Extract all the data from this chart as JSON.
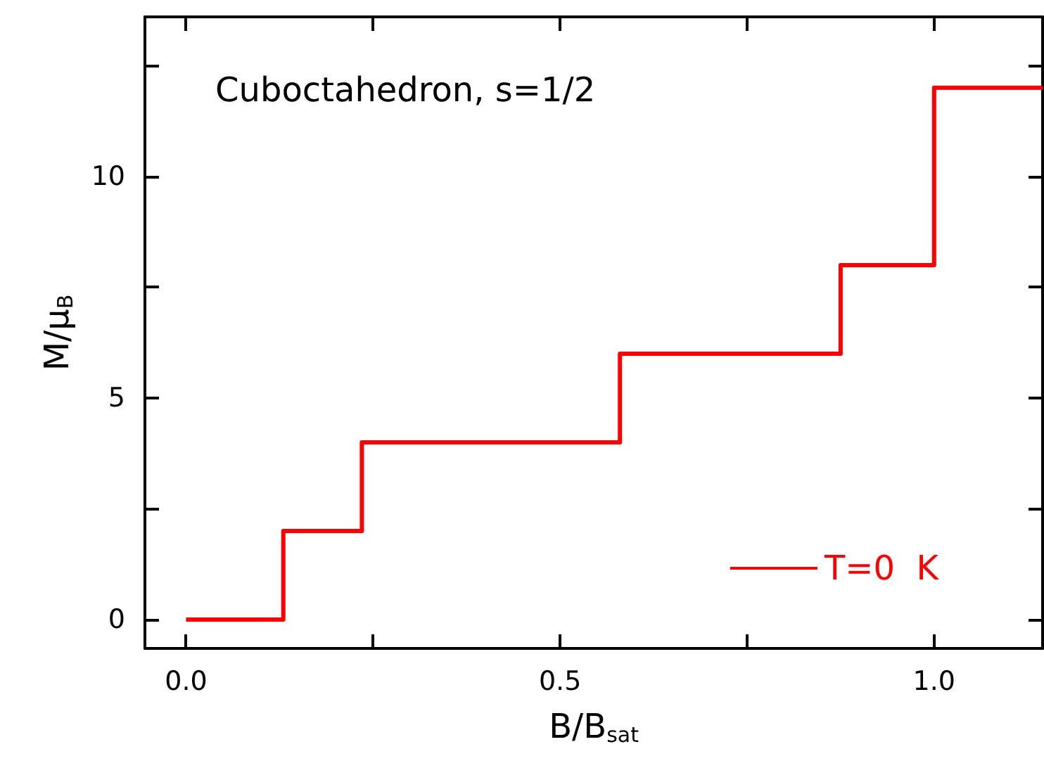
{
  "chart_data": {
    "type": "step",
    "xlabel": "B/B$_{sat}$",
    "ylabel": "M/μ$_{B}$",
    "annotations": [
      "Cuboctahedron, s=1/2"
    ],
    "series": [
      {
        "name": "T=0  K",
        "color": "#ff0000",
        "x": [
          0,
          0.13,
          0.235,
          0.58,
          0.875,
          1.0,
          1.145
        ],
        "values": [
          0,
          2,
          4,
          6,
          8,
          12,
          12
        ]
      }
    ],
    "xlim": [
      -0.055,
      1.145
    ],
    "ylim": [
      -0.65,
      13.6
    ],
    "xticks": [
      {
        "value": 0,
        "label": "0.0"
      },
      {
        "value": 0.25,
        "label": null
      },
      0.5,
      {
        "value": 0.75,
        "label": null
      },
      {
        "value": 1,
        "label": "1.0"
      }
    ],
    "yticks": [
      0,
      {
        "value": 2.5,
        "label": null
      },
      5,
      {
        "value": 7.5,
        "label": null
      },
      10,
      {
        "value": 12.5,
        "label": null
      }
    ],
    "grid": false,
    "legend": "bottom right",
    "marker": "none",
    "line_style": "solid"
  }
}
